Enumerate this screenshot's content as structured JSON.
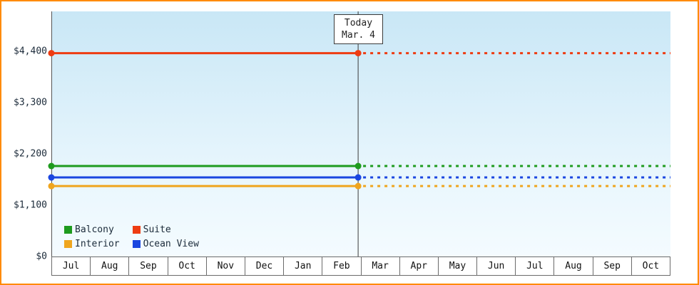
{
  "window": {
    "border_color": "#ff8a00"
  },
  "chart_data": {
    "type": "line",
    "title": "",
    "xlabel": "",
    "ylabel": "",
    "x_categories": [
      "Jul",
      "Aug",
      "Sep",
      "Oct",
      "Nov",
      "Dec",
      "Jan",
      "Feb",
      "Mar",
      "Apr",
      "May",
      "Jun",
      "Jul",
      "Aug",
      "Sep",
      "Oct"
    ],
    "y_ticks": [
      {
        "value": 0,
        "label": "$0"
      },
      {
        "value": 1100,
        "label": "$1,100"
      },
      {
        "value": 2200,
        "label": "$2,200"
      },
      {
        "value": 3300,
        "label": "$3,300"
      },
      {
        "value": 4400,
        "label": "$4,400"
      }
    ],
    "ylim": [
      0,
      5260
    ],
    "grid": false,
    "series": [
      {
        "name": "Interior",
        "color": "#efa51e",
        "value": 1510
      },
      {
        "name": "Ocean View",
        "color": "#1a46e0",
        "value": 1695
      },
      {
        "name": "Balcony",
        "color": "#1e9b1e",
        "value": 1940
      },
      {
        "name": "Suite",
        "color": "#ee3c12",
        "value": 4360
      }
    ],
    "line_style_note": "solid line before today marker, dotted projection after",
    "today": {
      "line1": "Today",
      "line2": "Mar. 4",
      "x_fraction": 0.4955
    },
    "legend": {
      "position": "bottom-left",
      "rows": [
        [
          "Balcony",
          "Suite"
        ],
        [
          "Interior",
          "Ocean View"
        ]
      ]
    }
  }
}
